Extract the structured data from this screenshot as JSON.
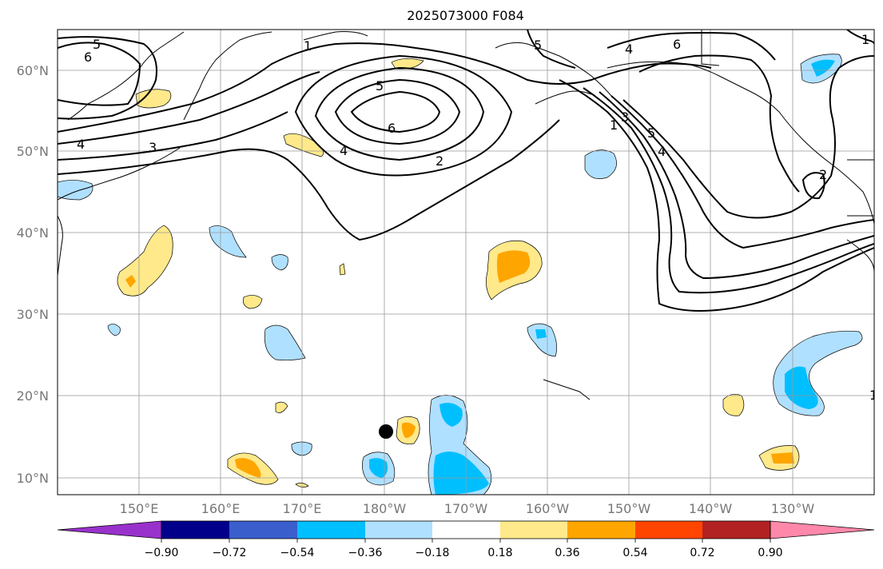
{
  "title": "2025073000 F084",
  "lat_labels": [
    "60°N",
    "50°N",
    "40°N",
    "30°N",
    "20°N",
    "10°N"
  ],
  "lon_labels": [
    "150°E",
    "160°E",
    "170°E",
    "180°W",
    "170°W",
    "160°W",
    "150°W",
    "140°W",
    "130°W"
  ],
  "contour_labels": [
    "5",
    "6",
    "1",
    "4",
    "6",
    "5",
    "6",
    "4",
    "3",
    "4",
    "2",
    "1",
    "3",
    "5",
    "4",
    "2",
    "1",
    "1",
    "5"
  ],
  "colorbar": {
    "colors": [
      "#9932cc",
      "#00008b",
      "#3a5fcd",
      "#00bfff",
      "#b0e0ff",
      "#ffffff",
      "#ffe98a",
      "#ffa500",
      "#ff4500",
      "#b22222",
      "#ff88aa"
    ],
    "tick_labels": [
      "−0.90",
      "−0.72",
      "−0.54",
      "−0.36",
      "−0.18",
      "0.18",
      "0.36",
      "0.54",
      "0.72",
      "0.90"
    ]
  },
  "marker": {
    "lon": -179.9,
    "lat": 15.8
  }
}
